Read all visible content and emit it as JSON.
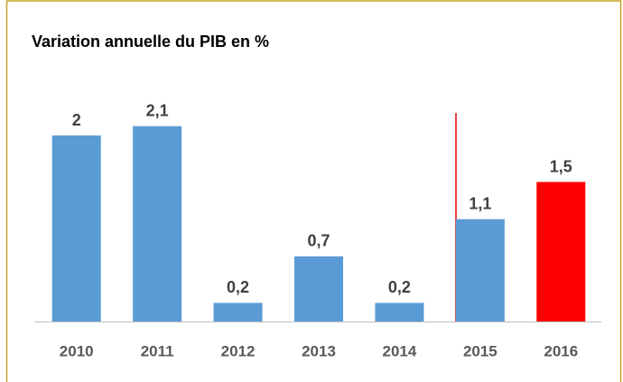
{
  "chart_data": {
    "type": "bar",
    "title": "Variation annuelle du PIB en %",
    "categories": [
      "2010",
      "2011",
      "2012",
      "2013",
      "2014",
      "2015",
      "2016"
    ],
    "values": [
      2,
      2.1,
      0.2,
      0.7,
      0.2,
      1.1,
      1.5
    ],
    "value_labels": [
      "2",
      "2,1",
      "0,2",
      "0,7",
      "0,2",
      "1,1",
      "1,5"
    ],
    "colors": [
      "#5b9bd5",
      "#5b9bd5",
      "#5b9bd5",
      "#5b9bd5",
      "#5b9bd5",
      "#5b9bd5",
      "#ff0000"
    ],
    "ylim": [
      0,
      2.1
    ]
  }
}
